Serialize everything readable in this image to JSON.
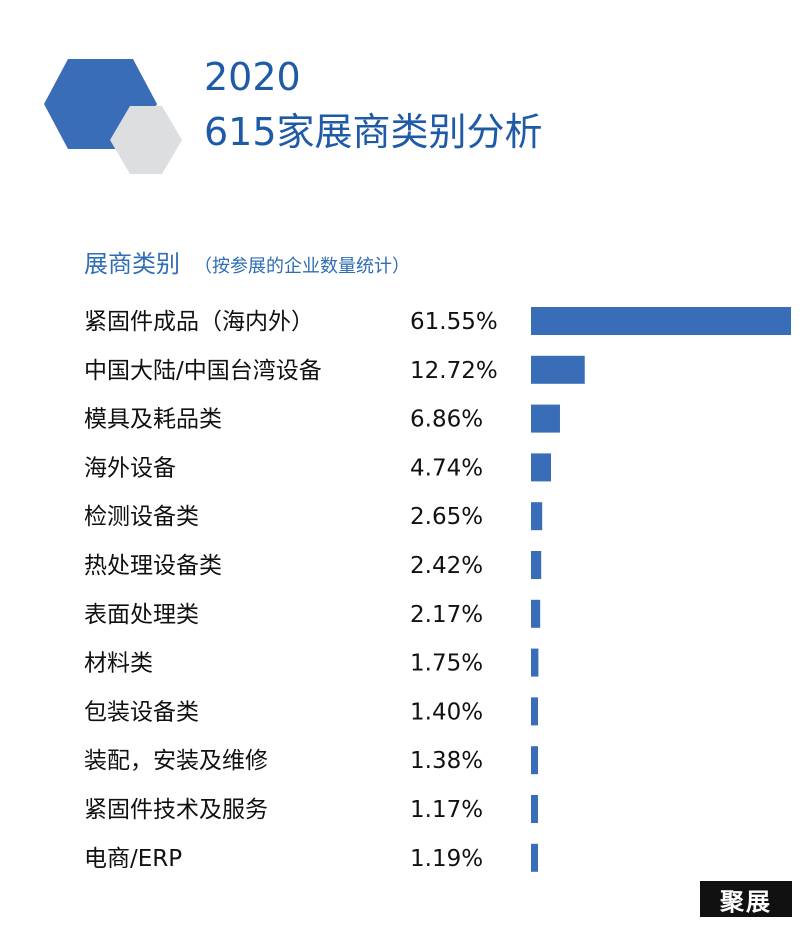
{
  "header": {
    "year": "2020",
    "title": "615家展商类别分析"
  },
  "subheader": {
    "label": "展商类别",
    "note": "（按参展的企业数量统计）"
  },
  "colors": {
    "bar": "#3a6db8",
    "hex_primary": "#3a6db8",
    "hex_secondary": "#dcdedf",
    "title": "#1f5aa6"
  },
  "chart_data": {
    "type": "bar",
    "orientation": "horizontal",
    "unit": "%",
    "categories": [
      "紧固件成品（海内外）",
      "中国大陆/中国台湾设备",
      "模具及耗品类",
      "海外设备",
      "检测设备类",
      "热处理设备类",
      "表面处理类",
      "材料类",
      "包装设备类",
      "装配，安装及维修",
      "紧固件技术及服务",
      "电商/ERP"
    ],
    "values": [
      61.55,
      12.72,
      6.86,
      4.74,
      2.65,
      2.42,
      2.17,
      1.75,
      1.4,
      1.38,
      1.17,
      1.19
    ],
    "value_labels": [
      "61.55%",
      "12.72%",
      "6.86%",
      "4.74%",
      "2.65%",
      "2.42%",
      "2.17%",
      "1.75%",
      "1.40%",
      "1.38%",
      "1.17%",
      "1.19%"
    ],
    "xlim": [
      0,
      61.55
    ],
    "grid": false,
    "legend": "none"
  },
  "watermark": "聚展"
}
